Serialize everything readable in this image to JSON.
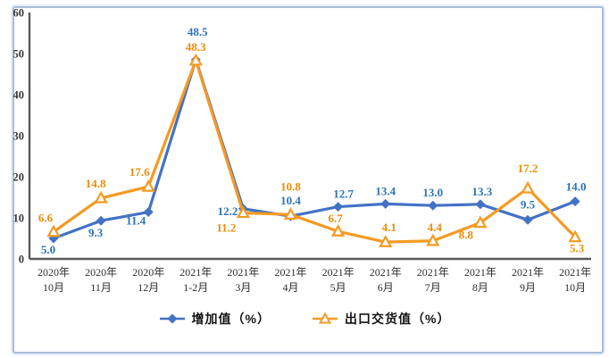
{
  "chart_data": {
    "type": "line",
    "title": "",
    "xlabel": "",
    "ylabel": "",
    "categories": [
      [
        "2020年",
        "10月"
      ],
      [
        "2020年",
        "11月"
      ],
      [
        "2020年",
        "12月"
      ],
      [
        "2021年",
        "1-2月"
      ],
      [
        "2021年",
        "3月"
      ],
      [
        "2021年",
        "4月"
      ],
      [
        "2021年",
        "5月"
      ],
      [
        "2021年",
        "6月"
      ],
      [
        "2021年",
        "7月"
      ],
      [
        "2021年",
        "8月"
      ],
      [
        "2021年",
        "9月"
      ],
      [
        "2021年",
        "10月"
      ]
    ],
    "series": [
      {
        "name": "增加值（%）",
        "marker": "diamond",
        "color": "#4472C4",
        "label_color": "#2E74B5",
        "values": [
          5.0,
          9.3,
          11.4,
          48.5,
          12.2,
          10.4,
          12.7,
          13.4,
          13.0,
          13.3,
          9.5,
          14.0
        ]
      },
      {
        "name": "出口交货值（%）",
        "marker": "triangle",
        "color": "#F59A23",
        "label_color": "#EE8D0B",
        "values": [
          6.6,
          14.8,
          17.6,
          48.3,
          11.2,
          10.8,
          6.7,
          4.1,
          4.4,
          8.8,
          17.2,
          5.3
        ]
      }
    ],
    "ylim": [
      0,
      60
    ],
    "yticks": [
      0,
      10,
      20,
      30,
      40,
      50,
      60
    ],
    "grid": false,
    "legend_position": "bottom",
    "axis_color": "#595959",
    "frame_color": "#a7bedc"
  }
}
